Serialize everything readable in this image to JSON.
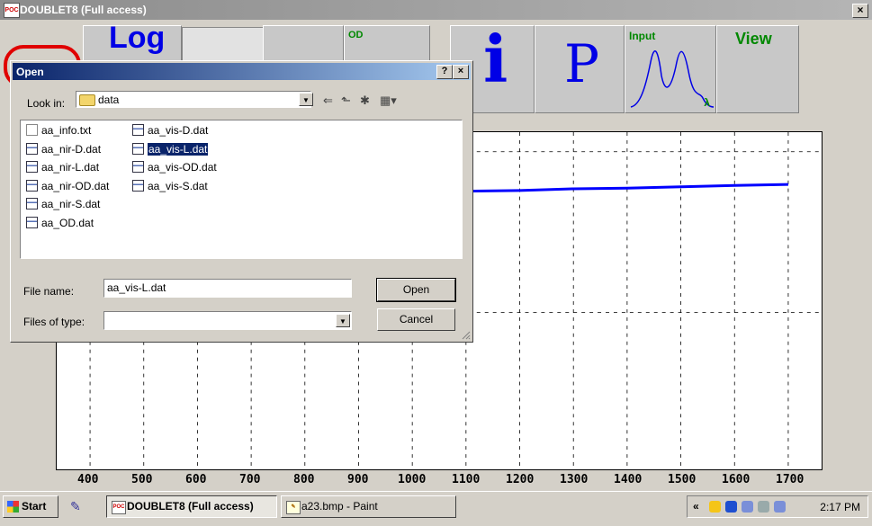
{
  "window": {
    "title": "DOUBLET8 (Full access)",
    "close_symbol": "×",
    "icon_text": "POC"
  },
  "toolbar": {
    "log_label": "Log",
    "od_label": "OD",
    "info_symbol": "i",
    "p_symbol": "P",
    "input_label": "Input",
    "lambda_symbol": "λ",
    "view_label": "View"
  },
  "chart_data": {
    "type": "line",
    "x_ticks": [
      "400",
      "500",
      "600",
      "700",
      "800",
      "900",
      "1000",
      "1100",
      "1200",
      "1300",
      "1400",
      "1500",
      "1600",
      "1700"
    ],
    "series_color": "#0000ff",
    "grid": "dashed",
    "series": [
      {
        "x": [
          1100,
          1200,
          1300,
          1400,
          1500,
          1600,
          1700
        ],
        "level": [
          0.175,
          0.173,
          0.168,
          0.166,
          0.162,
          0.158,
          0.155
        ]
      }
    ]
  },
  "dialog": {
    "title": "Open",
    "help_symbol": "?",
    "close_symbol": "×",
    "look_in_label": "Look in:",
    "look_in_value": "data",
    "files": [
      {
        "name": "aa_info.txt",
        "kind": "txt",
        "selected": false
      },
      {
        "name": "aa_nir-D.dat",
        "kind": "dat",
        "selected": false
      },
      {
        "name": "aa_nir-L.dat",
        "kind": "dat",
        "selected": false
      },
      {
        "name": "aa_nir-OD.dat",
        "kind": "dat",
        "selected": false
      },
      {
        "name": "aa_nir-S.dat",
        "kind": "dat",
        "selected": false
      },
      {
        "name": "aa_OD.dat",
        "kind": "dat",
        "selected": false
      },
      {
        "name": "aa_vis-D.dat",
        "kind": "dat",
        "selected": false
      },
      {
        "name": "aa_vis-L.dat",
        "kind": "dat",
        "selected": true
      },
      {
        "name": "aa_vis-OD.dat",
        "kind": "dat",
        "selected": false
      },
      {
        "name": "aa_vis-S.dat",
        "kind": "dat",
        "selected": false
      }
    ],
    "file_name_label": "File name:",
    "file_name_value": "aa_vis-L.dat",
    "files_of_type_label": "Files of type:",
    "files_of_type_value": "",
    "open_button": "Open",
    "cancel_button": "Cancel"
  },
  "taskbar": {
    "start_label": "Start",
    "tasks": [
      {
        "label": "DOUBLET8 (Full access)",
        "active": true
      },
      {
        "label": "a23.bmp - Paint",
        "active": false
      }
    ],
    "tray_chevron": "«",
    "clock": "2:17 PM"
  }
}
